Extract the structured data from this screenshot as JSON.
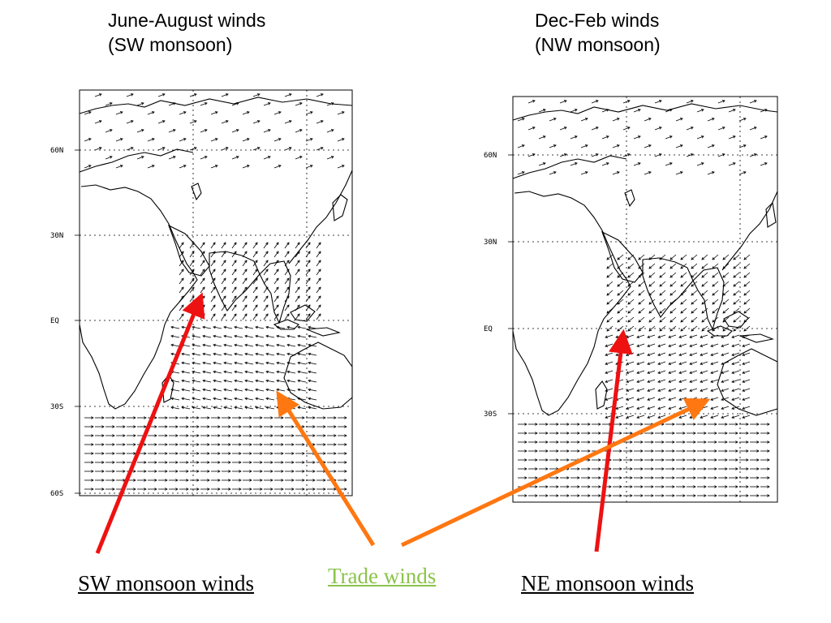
{
  "titles": {
    "left": {
      "line1": "June-August winds",
      "line2": "(SW monsoon)"
    },
    "right": {
      "line1": "Dec-Feb winds",
      "line2": "(NW monsoon)"
    }
  },
  "maps": {
    "left": {
      "lat_labels": [
        "60N",
        "30N",
        "EQ",
        "30S",
        "60S"
      ]
    },
    "right": {
      "lat_labels": [
        "60N",
        "30N",
        "EQ",
        "30S"
      ]
    }
  },
  "captions": {
    "sw": "SW monsoon winds",
    "trade": "Trade winds",
    "ne": "NE monsoon winds"
  },
  "colors": {
    "sw_arrow": "#ee1111",
    "ne_arrow": "#ee1111",
    "trade_arrow": "#ff7711",
    "trade_text": "#8bc34a"
  }
}
